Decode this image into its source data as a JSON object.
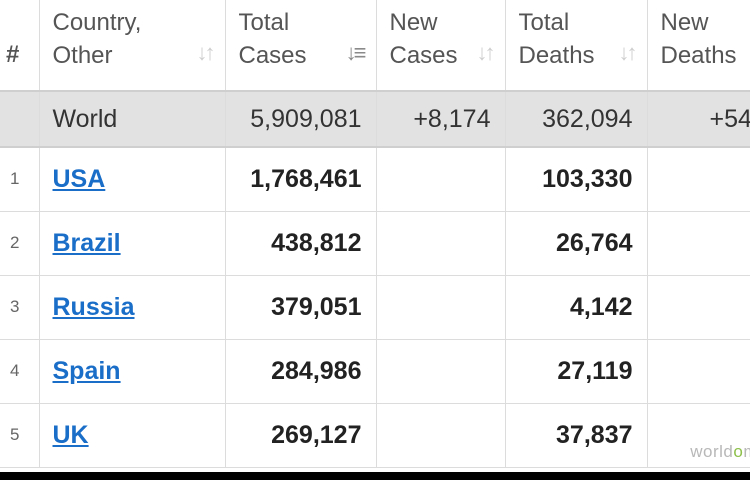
{
  "headers": {
    "rank": "#",
    "country_line1": "Country,",
    "country_line2": "Other",
    "total_cases_line1": "Total",
    "total_cases_line2": "Cases",
    "new_cases_line1": "New",
    "new_cases_line2": "Cases",
    "total_deaths_line1": "Total",
    "total_deaths_line2": "Deaths",
    "new_deaths_line1": "New",
    "new_deaths_line2": "Deaths"
  },
  "world": {
    "name": "World",
    "total_cases": "5,909,081",
    "new_cases": "+8,174",
    "total_deaths": "362,094",
    "new_deaths": "+54"
  },
  "rows": [
    {
      "rank": "1",
      "country": "USA",
      "total_cases": "1,768,461",
      "new_cases": "",
      "total_deaths": "103,330",
      "new_deaths": ""
    },
    {
      "rank": "2",
      "country": "Brazil",
      "total_cases": "438,812",
      "new_cases": "",
      "total_deaths": "26,764",
      "new_deaths": ""
    },
    {
      "rank": "3",
      "country": "Russia",
      "total_cases": "379,051",
      "new_cases": "",
      "total_deaths": "4,142",
      "new_deaths": ""
    },
    {
      "rank": "4",
      "country": "Spain",
      "total_cases": "284,986",
      "new_cases": "",
      "total_deaths": "27,119",
      "new_deaths": ""
    },
    {
      "rank": "5",
      "country": "UK",
      "total_cases": "269,127",
      "new_cases": "",
      "total_deaths": "37,837",
      "new_deaths": ""
    }
  ],
  "watermark": {
    "part1": "world",
    "part2": "o",
    "part3": "m"
  },
  "colors": {
    "link": "#1a6ec8",
    "world_row_bg": "#e2e2e2",
    "watermark_accent": "#8cc04a"
  }
}
